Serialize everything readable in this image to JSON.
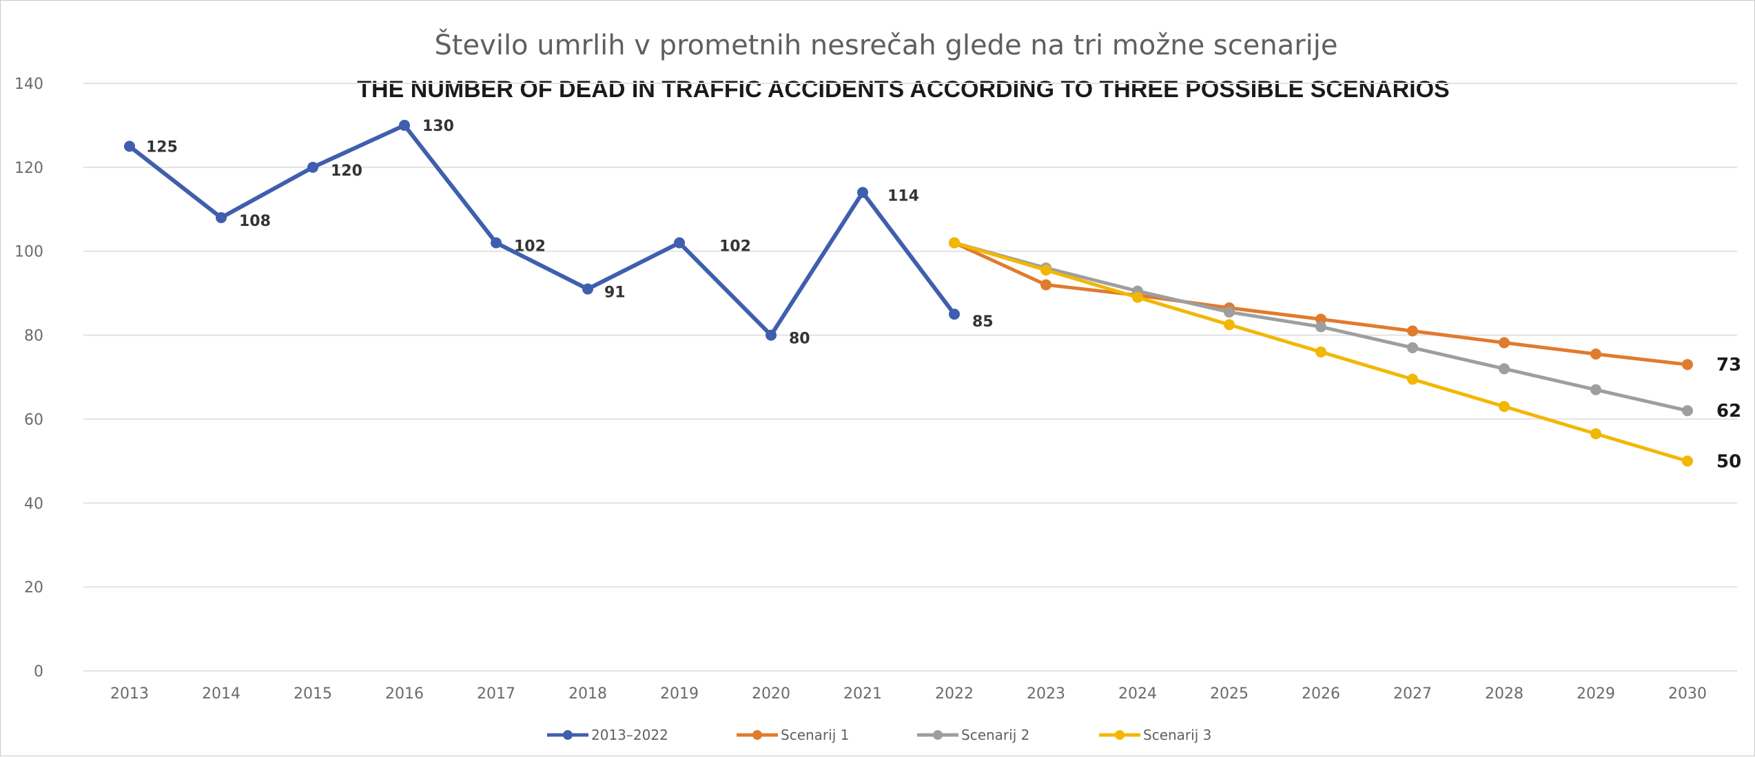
{
  "chart_data": {
    "type": "line",
    "title": "Število umrlih v prometnih nesrečah glede na tri možne scenarije",
    "subtitle": "THE NUMBER OF DEAD IN TRAFFIC ACCIDENTS ACCORDING TO THREE POSSIBLE SCENARIOS",
    "x": [
      "2013",
      "2014",
      "2015",
      "2016",
      "2017",
      "2018",
      "2019",
      "2020",
      "2021",
      "2022",
      "2023",
      "2024",
      "2025",
      "2026",
      "2027",
      "2028",
      "2029",
      "2030"
    ],
    "ylim": [
      0,
      140
    ],
    "yticks": [
      0,
      20,
      40,
      60,
      80,
      100,
      120,
      140
    ],
    "grid": true,
    "legend": "bottom",
    "series": [
      {
        "name": "2013–2022",
        "color": "#3f5fae",
        "x": [
          "2013",
          "2014",
          "2015",
          "2016",
          "2017",
          "2018",
          "2019",
          "2020",
          "2021",
          "2022"
        ],
        "values": [
          125,
          108,
          120,
          130,
          102,
          91,
          102,
          80,
          114,
          85
        ],
        "labels": [
          "125",
          "108",
          "120",
          "130",
          "102",
          "91",
          "102",
          "80",
          "114",
          "85"
        ]
      },
      {
        "name": "Scenarij 1",
        "color": "#e07b2e",
        "x": [
          "2022",
          "2023",
          "2024",
          "2025",
          "2026",
          "2027",
          "2028",
          "2029",
          "2030"
        ],
        "values": [
          102,
          92,
          89.5,
          86.5,
          83.8,
          81,
          78.2,
          75.5,
          73
        ],
        "end_label": "73"
      },
      {
        "name": "Scenarij 2",
        "color": "#9e9e9e",
        "x": [
          "2022",
          "2023",
          "2024",
          "2025",
          "2026",
          "2027",
          "2028",
          "2029",
          "2030"
        ],
        "values": [
          102,
          96,
          90.5,
          85.5,
          82,
          77,
          72,
          67,
          62
        ],
        "end_label": "62"
      },
      {
        "name": "Scenarij 3",
        "color": "#f2b705",
        "x": [
          "2022",
          "2023",
          "2024",
          "2025",
          "2026",
          "2027",
          "2028",
          "2029",
          "2030"
        ],
        "values": [
          102,
          95.5,
          89,
          82.5,
          76,
          69.5,
          63,
          56.5,
          50
        ],
        "end_label": "50"
      }
    ]
  }
}
